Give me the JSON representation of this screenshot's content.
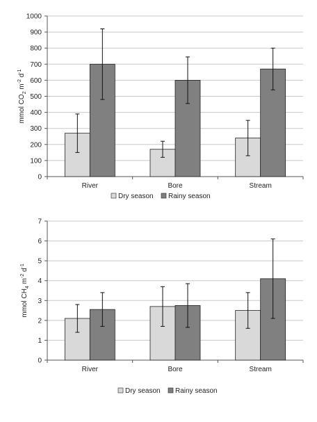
{
  "colors": {
    "dry": "#d9d9d9",
    "rainy": "#808080",
    "bar_stroke": "#222222",
    "grid": "#c8c8c8",
    "axis": "#555555"
  },
  "chart_data": [
    {
      "type": "bar",
      "categories": [
        "River",
        "Bore",
        "Stream"
      ],
      "series": [
        {
          "name": "Dry season",
          "values": [
            270,
            170,
            240
          ],
          "error": [
            120,
            50,
            110
          ]
        },
        {
          "name": "Rainy season",
          "values": [
            700,
            600,
            670
          ],
          "error": [
            220,
            145,
            130
          ]
        }
      ],
      "ylabel": {
        "base": "mmol CO",
        "sub": "2",
        "mid": " m",
        "sup1": "-2",
        "tail": " d",
        "sup2": "-1"
      },
      "ylim": [
        0,
        1000
      ],
      "yticks": [
        "0",
        "100",
        "200",
        "300",
        "400",
        "500",
        "600",
        "700",
        "800",
        "900",
        "1000"
      ],
      "grid": true,
      "legend": "bottom"
    },
    {
      "type": "bar",
      "categories": [
        "River",
        "Bore",
        "Stream"
      ],
      "series": [
        {
          "name": "Dry season",
          "values": [
            2.1,
            2.7,
            2.5
          ],
          "error": [
            0.7,
            1.0,
            0.9
          ]
        },
        {
          "name": "Rainy season",
          "values": [
            2.55,
            2.75,
            4.1
          ],
          "error": [
            0.85,
            1.1,
            2.0
          ]
        }
      ],
      "ylabel": {
        "base": "mmol CH",
        "sub": "4",
        "mid": " m",
        "sup1": "-2",
        "tail": " d",
        "sup2": "-1"
      },
      "ylim": [
        0,
        7
      ],
      "yticks": [
        "0",
        "1",
        "2",
        "3",
        "4",
        "5",
        "6",
        "7"
      ],
      "grid": true,
      "legend": "bottom"
    }
  ]
}
